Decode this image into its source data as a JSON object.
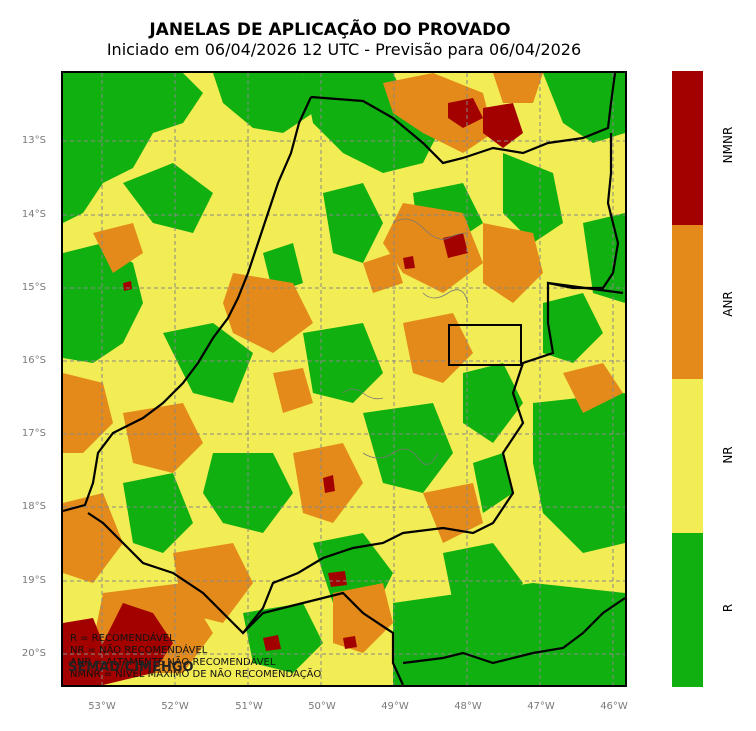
{
  "title": "JANELAS DE APLICAÇÃO DO PROVADO",
  "subtitle": "Iniciado em 06/04/2026 12 UTC - Previsão para 06/04/2026",
  "lat_ticks": [
    "13°S",
    "14°S",
    "15°S",
    "16°S",
    "17°S",
    "18°S",
    "19°S",
    "20°S"
  ],
  "lon_ticks": [
    "53°W",
    "52°W",
    "51°W",
    "50°W",
    "49°W",
    "48°W",
    "47°W",
    "46°W"
  ],
  "legend": {
    "r": "R = RECOMENDÁVEL",
    "nr": "NR = NÃO RECOMENDÁVEL",
    "anr": "ANR = ALTAMENTE NÃO RECOMENDÁVEL",
    "nmnr": "NMNR = NÍVEL MÁXIMO DE NÃO RECOMENDAÇÃO"
  },
  "credit": "SEMAD/CIMEHGO",
  "colorbar": {
    "labels": [
      "NMNR",
      "ANR",
      "NR",
      "R"
    ],
    "colors": {
      "NMNR": "#a30000",
      "ANR": "#e48a1a",
      "NR": "#f2ec55",
      "R": "#10b010"
    }
  },
  "colors": {
    "background": "#f2ec55",
    "R": "#10b010",
    "NR": "#f2ec55",
    "ANR": "#e48a1a",
    "NMNR": "#a30000"
  }
}
